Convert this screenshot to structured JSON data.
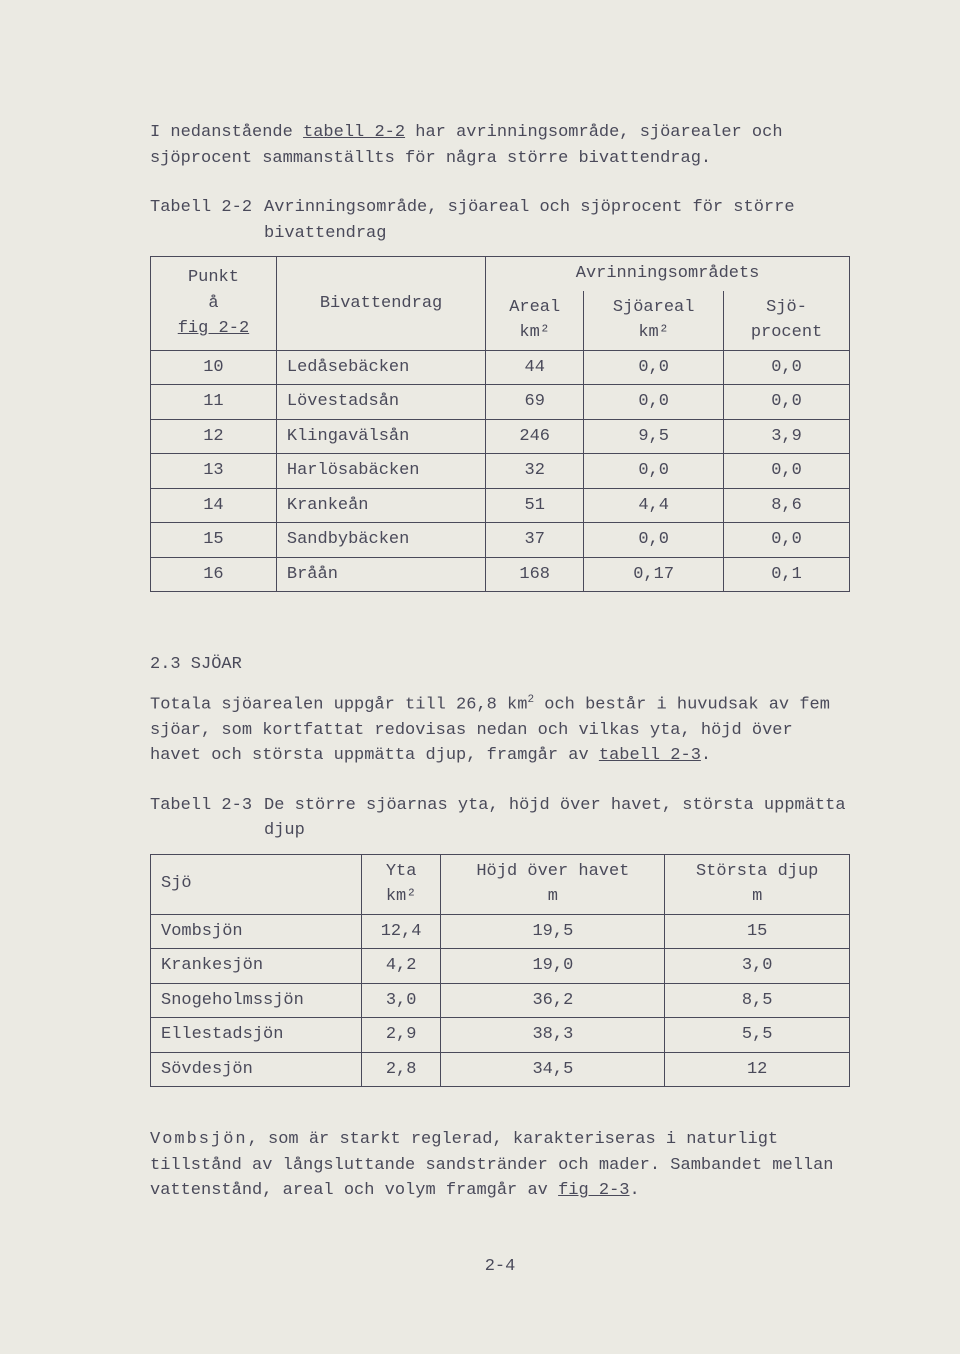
{
  "intro_paragraph_pre": "I nedanstående ",
  "intro_tabref": "tabell 2-2",
  "intro_paragraph_post": " har avrinningsområde, sjöarealer och sjöprocent sammanställts för några större bivattendrag.",
  "table1_caption_label": "Tabell 2-2",
  "table1_caption_desc": "Avrinningsområde, sjöareal och sjöprocent för större bivattendrag",
  "table1": {
    "head_col1_top": "Punkt",
    "head_col1_mid": "å",
    "head_col1_bot": "fig 2-2",
    "head_col2": "Bivattendrag",
    "head_group": "Avrinningsområdets",
    "head_sub1_top": "Areal",
    "head_sub1_bot": "km²",
    "head_sub2_top": "Sjöareal",
    "head_sub2_bot": "km²",
    "head_sub3_top": "Sjö-",
    "head_sub3_bot": "procent",
    "rows": [
      {
        "p": "10",
        "n": "Ledåsebäcken",
        "a": "44",
        "s": "0,0",
        "pc": "0,0"
      },
      {
        "p": "11",
        "n": "Lövestadsån",
        "a": "69",
        "s": "0,0",
        "pc": "0,0"
      },
      {
        "p": "12",
        "n": "Klingavälsån",
        "a": "246",
        "s": "9,5",
        "pc": "3,9"
      },
      {
        "p": "13",
        "n": "Harlösabäcken",
        "a": "32",
        "s": "0,0",
        "pc": "0,0"
      },
      {
        "p": "14",
        "n": "Krankeån",
        "a": "51",
        "s": "4,4",
        "pc": "8,6"
      },
      {
        "p": "15",
        "n": "Sandbybäcken",
        "a": "37",
        "s": "0,0",
        "pc": "0,0"
      },
      {
        "p": "16",
        "n": "Bråån",
        "a": "168",
        "s": "0,17",
        "pc": "0,1"
      }
    ]
  },
  "section_heading": "2.3  SJÖAR",
  "sjoar_para_pre": "Totala sjöarealen uppgår till 26,8 km",
  "sjoar_para_sup": "2",
  "sjoar_para_mid": " och består i huvudsak av fem sjöar, som kortfattat redovisas nedan och vilkas yta, höjd över havet och största uppmätta djup, framgår av ",
  "sjoar_tabref": "tabell 2-3",
  "sjoar_para_post": ".",
  "table2_caption_label": "Tabell 2-3",
  "table2_caption_desc": "De större sjöarnas yta, höjd över havet, största uppmätta djup",
  "table2": {
    "head_col1": "Sjö",
    "head_col2_top": "Yta",
    "head_col2_bot": "km²",
    "head_col3_top": "Höjd över havet",
    "head_col3_bot": "m",
    "head_col4_top": "Största djup",
    "head_col4_bot": "m",
    "rows": [
      {
        "n": "Vombsjön",
        "y": "12,4",
        "h": "19,5",
        "d": "15"
      },
      {
        "n": "Krankesjön",
        "y": "4,2",
        "h": "19,0",
        "d": "3,0"
      },
      {
        "n": "Snogeholmssjön",
        "y": "3,0",
        "h": "36,2",
        "d": "8,5"
      },
      {
        "n": "Ellestadsjön",
        "y": "2,9",
        "h": "38,3",
        "d": "5,5"
      },
      {
        "n": "Sövdesjön",
        "y": "2,8",
        "h": "34,5",
        "d": "12"
      }
    ]
  },
  "vomb_para_name": "Vombsjön",
  "vomb_para_mid": ", som är starkt reglerad, karakteriseras i naturligt tillstånd av långsluttande sandstränder och mader. Sambandet mellan vattenstånd, areal och volym framgår av ",
  "vomb_figref": "fig 2-3",
  "vomb_para_post": ".",
  "page_number": "2-4"
}
